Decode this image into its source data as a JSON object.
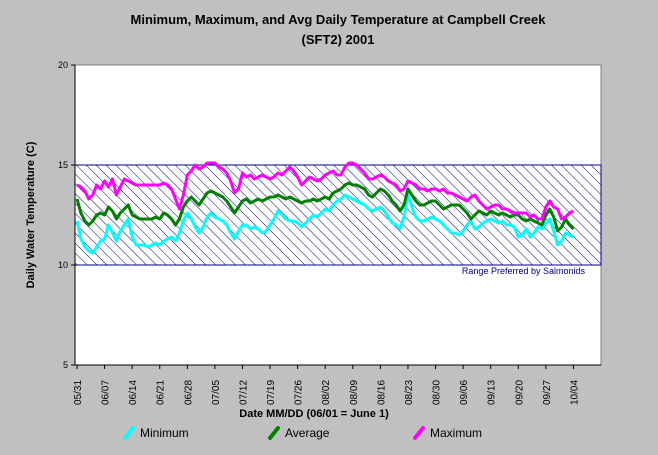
{
  "chart_data": {
    "type": "line",
    "title": [
      "Minimum, Maximum, and Avg Daily Temperature at Campbell Creek",
      "(SFT2) 2001"
    ],
    "x_label": "Date MM/DD (06/01 = June 1)",
    "y_label": "Daily Water Temperature (C)",
    "ylim": [
      5,
      20
    ],
    "yticks": [
      5,
      10,
      15,
      20
    ],
    "range_band": {
      "low": 10,
      "high": 15,
      "label": "Range Preferred by Salmonids",
      "color": "#000080"
    },
    "categories": [
      "05/31",
      null,
      null,
      null,
      null,
      null,
      null,
      "06/07",
      null,
      null,
      null,
      null,
      null,
      null,
      "06/14",
      null,
      null,
      null,
      null,
      null,
      null,
      "06/21",
      null,
      null,
      null,
      null,
      null,
      null,
      "06/28",
      null,
      null,
      null,
      null,
      null,
      null,
      "07/05",
      null,
      null,
      null,
      null,
      null,
      null,
      "07/12",
      null,
      null,
      null,
      null,
      null,
      null,
      "07/19",
      null,
      null,
      null,
      null,
      null,
      null,
      "07/26",
      null,
      null,
      null,
      null,
      null,
      null,
      "08/02",
      null,
      null,
      null,
      null,
      null,
      null,
      "08/09",
      null,
      null,
      null,
      null,
      null,
      null,
      "08/16",
      null,
      null,
      null,
      null,
      null,
      null,
      "08/23",
      null,
      null,
      null,
      null,
      null,
      null,
      "08/30",
      null,
      null,
      null,
      null,
      null,
      null,
      "09/06",
      null,
      null,
      null,
      null,
      null,
      null,
      "09/13",
      null,
      null,
      null,
      null,
      null,
      null,
      "09/20",
      null,
      null,
      null,
      null,
      null,
      null,
      "09/27",
      null,
      null,
      null,
      null,
      null,
      null,
      "10/04"
    ],
    "series": [
      {
        "name": "Minimum",
        "color": "#00ffff",
        "values": [
          12.2,
          11.3,
          10.9,
          10.7,
          10.6,
          10.9,
          11.2,
          11.3,
          12.0,
          11.6,
          11.2,
          11.7,
          12.0,
          12.3,
          11.4,
          11.0,
          11.0,
          11.0,
          10.9,
          11.0,
          11.1,
          11.0,
          11.2,
          11.3,
          11.4,
          11.2,
          11.6,
          12.2,
          12.6,
          12.3,
          11.9,
          11.6,
          11.9,
          12.4,
          12.6,
          12.4,
          12.3,
          12.2,
          12.0,
          11.6,
          11.3,
          11.7,
          12.0,
          12.0,
          11.8,
          11.9,
          11.8,
          11.6,
          11.7,
          12.0,
          12.3,
          12.7,
          12.5,
          12.3,
          12.2,
          12.2,
          12.1,
          11.9,
          12.1,
          12.3,
          12.5,
          12.4,
          12.6,
          12.8,
          12.7,
          13.0,
          13.2,
          13.3,
          13.5,
          13.4,
          13.3,
          13.2,
          13.1,
          13.0,
          12.8,
          12.7,
          12.8,
          12.9,
          12.7,
          12.4,
          12.1,
          12.0,
          11.8,
          12.4,
          13.5,
          12.9,
          12.4,
          12.2,
          12.2,
          12.3,
          12.4,
          12.3,
          12.2,
          12.0,
          11.8,
          11.6,
          11.6,
          11.5,
          11.7,
          12.0,
          12.2,
          11.8,
          11.9,
          12.1,
          12.2,
          12.3,
          12.2,
          12.1,
          12.2,
          12.0,
          12.0,
          11.9,
          11.4,
          11.5,
          11.8,
          11.4,
          11.6,
          11.9,
          11.8,
          12.1,
          12.3,
          11.7,
          11.0,
          11.2,
          11.6,
          11.5,
          11.4
        ]
      },
      {
        "name": "Average",
        "color": "#008000",
        "values": [
          13.3,
          12.6,
          12.2,
          12.0,
          12.2,
          12.5,
          12.6,
          12.5,
          12.9,
          12.7,
          12.3,
          12.6,
          12.8,
          13.0,
          12.5,
          12.4,
          12.3,
          12.3,
          12.3,
          12.3,
          12.4,
          12.3,
          12.6,
          12.5,
          12.3,
          12.0,
          12.3,
          12.9,
          13.2,
          13.4,
          13.2,
          13.0,
          13.3,
          13.6,
          13.7,
          13.6,
          13.5,
          13.4,
          13.2,
          12.9,
          12.6,
          12.9,
          13.2,
          13.3,
          13.1,
          13.2,
          13.3,
          13.2,
          13.3,
          13.4,
          13.4,
          13.5,
          13.4,
          13.3,
          13.4,
          13.3,
          13.2,
          13.1,
          13.2,
          13.2,
          13.3,
          13.2,
          13.3,
          13.4,
          13.3,
          13.6,
          13.7,
          13.8,
          14.0,
          14.1,
          14.0,
          14.0,
          13.9,
          13.8,
          13.5,
          13.4,
          13.6,
          13.8,
          13.7,
          13.5,
          13.2,
          13.0,
          12.7,
          13.0,
          13.8,
          13.5,
          13.2,
          13.0,
          13.0,
          13.1,
          13.2,
          13.2,
          13.0,
          12.8,
          12.9,
          13.0,
          13.0,
          13.0,
          12.8,
          12.6,
          12.3,
          12.5,
          12.7,
          12.6,
          12.5,
          12.7,
          12.6,
          12.5,
          12.6,
          12.5,
          12.4,
          12.5,
          12.5,
          12.3,
          12.2,
          12.3,
          12.2,
          12.1,
          12.0,
          12.5,
          12.8,
          12.4,
          11.7,
          11.9,
          12.3,
          12.0,
          11.8
        ]
      },
      {
        "name": "Maximum",
        "color": "#ff00ff",
        "values": [
          14.0,
          13.9,
          13.7,
          13.3,
          13.5,
          14.0,
          13.8,
          14.2,
          13.9,
          14.3,
          13.5,
          13.9,
          14.3,
          14.2,
          14.1,
          14.0,
          14.0,
          14.0,
          14.0,
          14.0,
          14.0,
          14.0,
          14.1,
          14.0,
          13.8,
          13.3,
          12.8,
          13.5,
          14.5,
          14.7,
          15.0,
          14.8,
          14.9,
          15.1,
          15.1,
          15.1,
          14.9,
          14.8,
          14.6,
          14.2,
          13.6,
          13.8,
          14.6,
          14.4,
          14.5,
          14.3,
          14.4,
          14.5,
          14.4,
          14.3,
          14.4,
          14.6,
          14.5,
          14.7,
          14.9,
          14.7,
          14.4,
          14.0,
          14.2,
          14.4,
          14.3,
          14.2,
          14.3,
          14.5,
          14.6,
          14.7,
          14.5,
          14.5,
          14.9,
          15.1,
          15.1,
          15.0,
          14.8,
          14.6,
          14.3,
          14.3,
          14.4,
          14.5,
          14.4,
          14.2,
          14.1,
          14.0,
          13.7,
          13.8,
          14.2,
          14.1,
          14.0,
          13.8,
          13.8,
          13.7,
          13.8,
          13.8,
          13.7,
          13.8,
          13.6,
          13.6,
          13.5,
          13.4,
          13.3,
          13.2,
          13.4,
          13.5,
          13.2,
          13.0,
          12.8,
          12.9,
          13.0,
          13.0,
          12.8,
          12.8,
          12.7,
          12.6,
          12.6,
          12.6,
          12.6,
          12.4,
          12.5,
          12.3,
          12.3,
          12.9,
          13.2,
          12.9,
          12.8,
          12.3,
          12.4,
          12.6,
          12.7
        ]
      }
    ]
  }
}
